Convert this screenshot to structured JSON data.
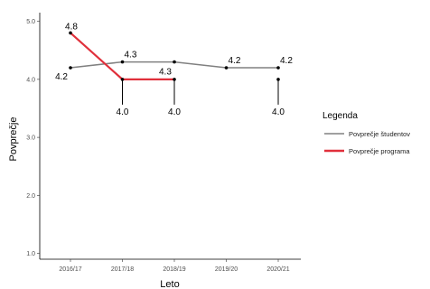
{
  "chart_data": {
    "type": "line",
    "xlabel": "Leto",
    "ylabel": "Povprečje",
    "categories": [
      "2016/17",
      "2017/18",
      "2018/19",
      "2019/20",
      "2020/21"
    ],
    "ylim": [
      0.9,
      5.15
    ],
    "yticks": [
      "1.0",
      "2.0",
      "3.0",
      "4.0",
      "5.0"
    ],
    "grid": false,
    "legend": {
      "title": "Legenda",
      "position": "right"
    },
    "series": [
      {
        "name": "Povprečje študentov",
        "color": "#808080",
        "values": [
          4.2,
          4.3,
          4.3,
          4.2,
          4.2
        ],
        "labels": [
          "4.2",
          "4.3",
          "4.3",
          "4.2",
          "4.2"
        ]
      },
      {
        "name": "Povprečje programa",
        "color": "#e0303b",
        "values": [
          4.8,
          4.0,
          4.0,
          null,
          4.0
        ],
        "labels": [
          "4.8",
          "4.0",
          "4.0",
          null,
          "4.0"
        ]
      }
    ]
  }
}
